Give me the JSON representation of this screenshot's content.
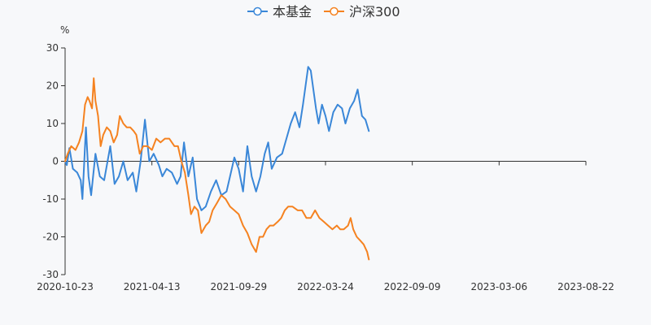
{
  "chart_data": {
    "type": "line",
    "unit": "%",
    "x": [
      "2020-10-23",
      "2021-04-13",
      "2021-09-29",
      "2022-03-24",
      "2022-09-09",
      "2023-03-06",
      "2023-08-22"
    ],
    "ylim": [
      -30,
      30
    ],
    "yticks": [
      30,
      20,
      10,
      0,
      -10,
      -20,
      -30
    ],
    "legend_position": "top-center",
    "series": [
      {
        "name": "本基金",
        "color": "#3a87d8",
        "points": [
          [
            0,
            0
          ],
          [
            0.02,
            -1
          ],
          [
            0.05,
            3.5
          ],
          [
            0.09,
            -2
          ],
          [
            0.14,
            -3
          ],
          [
            0.18,
            -5
          ],
          [
            0.2,
            -10
          ],
          [
            0.24,
            9
          ],
          [
            0.27,
            -4
          ],
          [
            0.3,
            -9
          ],
          [
            0.35,
            2
          ],
          [
            0.4,
            -4
          ],
          [
            0.45,
            -5
          ],
          [
            0.52,
            4
          ],
          [
            0.57,
            -6
          ],
          [
            0.62,
            -4
          ],
          [
            0.67,
            0
          ],
          [
            0.72,
            -5
          ],
          [
            0.78,
            -3
          ],
          [
            0.82,
            -8
          ],
          [
            0.87,
            0
          ],
          [
            0.92,
            11
          ],
          [
            0.97,
            0
          ],
          [
            1.02,
            2
          ],
          [
            1.08,
            -1
          ],
          [
            1.12,
            -4
          ],
          [
            1.17,
            -2
          ],
          [
            1.23,
            -3
          ],
          [
            1.29,
            -6
          ],
          [
            1.33,
            -4
          ],
          [
            1.37,
            5
          ],
          [
            1.42,
            -4
          ],
          [
            1.47,
            1
          ],
          [
            1.52,
            -10
          ],
          [
            1.57,
            -13
          ],
          [
            1.62,
            -12
          ],
          [
            1.68,
            -8
          ],
          [
            1.74,
            -5
          ],
          [
            1.8,
            -9
          ],
          [
            1.86,
            -8
          ],
          [
            1.9,
            -4
          ],
          [
            1.95,
            1
          ],
          [
            2.0,
            -2
          ],
          [
            2.05,
            -8
          ],
          [
            2.1,
            4
          ],
          [
            2.15,
            -4
          ],
          [
            2.2,
            -8
          ],
          [
            2.25,
            -4
          ],
          [
            2.3,
            2
          ],
          [
            2.34,
            5
          ],
          [
            2.38,
            -2
          ],
          [
            2.44,
            1
          ],
          [
            2.5,
            2
          ],
          [
            2.55,
            6
          ],
          [
            2.6,
            10
          ],
          [
            2.65,
            13
          ],
          [
            2.7,
            9
          ],
          [
            2.74,
            15
          ],
          [
            2.8,
            25
          ],
          [
            2.83,
            24
          ],
          [
            2.86,
            19
          ],
          [
            2.89,
            14
          ],
          [
            2.92,
            10
          ],
          [
            2.96,
            15
          ],
          [
            3.0,
            12
          ],
          [
            3.04,
            8
          ],
          [
            3.09,
            13
          ],
          [
            3.14,
            15
          ],
          [
            3.19,
            14
          ],
          [
            3.23,
            10
          ],
          [
            3.28,
            14
          ],
          [
            3.33,
            16
          ],
          [
            3.37,
            19
          ],
          [
            3.42,
            12
          ],
          [
            3.46,
            11
          ],
          [
            3.5,
            8
          ]
        ]
      },
      {
        "name": "沪深300",
        "color": "#f58220",
        "points": [
          [
            0,
            0
          ],
          [
            0.03,
            2
          ],
          [
            0.07,
            4
          ],
          [
            0.12,
            3
          ],
          [
            0.16,
            5
          ],
          [
            0.2,
            8
          ],
          [
            0.23,
            15
          ],
          [
            0.26,
            17
          ],
          [
            0.28,
            16
          ],
          [
            0.31,
            14
          ],
          [
            0.33,
            22
          ],
          [
            0.35,
            16
          ],
          [
            0.38,
            12
          ],
          [
            0.41,
            4
          ],
          [
            0.44,
            7
          ],
          [
            0.48,
            9
          ],
          [
            0.52,
            8
          ],
          [
            0.56,
            5
          ],
          [
            0.6,
            7
          ],
          [
            0.63,
            12
          ],
          [
            0.67,
            10
          ],
          [
            0.71,
            9
          ],
          [
            0.75,
            9
          ],
          [
            0.79,
            8
          ],
          [
            0.82,
            7
          ],
          [
            0.86,
            2
          ],
          [
            0.9,
            4
          ],
          [
            0.95,
            4
          ],
          [
            1.0,
            3
          ],
          [
            1.05,
            6
          ],
          [
            1.1,
            5
          ],
          [
            1.15,
            6
          ],
          [
            1.2,
            6
          ],
          [
            1.26,
            4
          ],
          [
            1.3,
            4
          ],
          [
            1.34,
            0
          ],
          [
            1.38,
            -3
          ],
          [
            1.42,
            -9
          ],
          [
            1.45,
            -14
          ],
          [
            1.49,
            -12
          ],
          [
            1.53,
            -13
          ],
          [
            1.57,
            -19
          ],
          [
            1.62,
            -17
          ],
          [
            1.66,
            -16
          ],
          [
            1.7,
            -13
          ],
          [
            1.75,
            -11
          ],
          [
            1.8,
            -9
          ],
          [
            1.85,
            -10
          ],
          [
            1.9,
            -12
          ],
          [
            1.95,
            -13
          ],
          [
            2.0,
            -14
          ],
          [
            2.05,
            -17
          ],
          [
            2.1,
            -19
          ],
          [
            2.15,
            -22
          ],
          [
            2.2,
            -24
          ],
          [
            2.24,
            -20
          ],
          [
            2.28,
            -20
          ],
          [
            2.32,
            -18
          ],
          [
            2.36,
            -17
          ],
          [
            2.4,
            -17
          ],
          [
            2.45,
            -16
          ],
          [
            2.49,
            -15
          ],
          [
            2.53,
            -13
          ],
          [
            2.57,
            -12
          ],
          [
            2.62,
            -12
          ],
          [
            2.68,
            -13
          ],
          [
            2.73,
            -13
          ],
          [
            2.78,
            -15
          ],
          [
            2.83,
            -15
          ],
          [
            2.88,
            -13
          ],
          [
            2.93,
            -15
          ],
          [
            2.98,
            -16
          ],
          [
            3.03,
            -17
          ],
          [
            3.08,
            -18
          ],
          [
            3.13,
            -17
          ],
          [
            3.17,
            -18
          ],
          [
            3.21,
            -18
          ],
          [
            3.26,
            -17
          ],
          [
            3.29,
            -15
          ],
          [
            3.32,
            -18
          ],
          [
            3.36,
            -20
          ],
          [
            3.4,
            -21
          ],
          [
            3.44,
            -22
          ],
          [
            3.48,
            -24
          ],
          [
            3.5,
            -26
          ]
        ]
      }
    ]
  }
}
